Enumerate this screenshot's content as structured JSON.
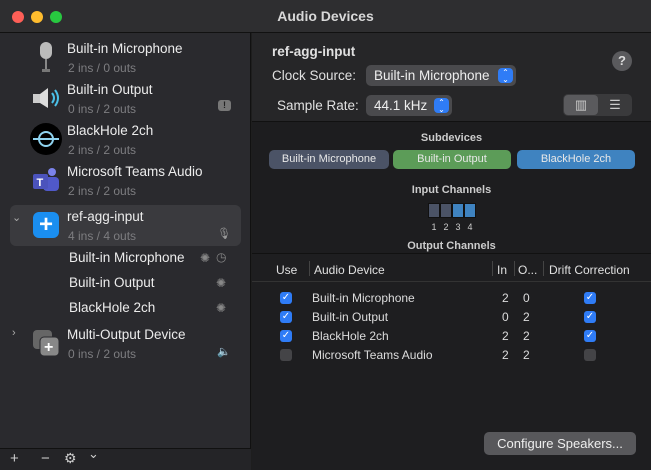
{
  "window": {
    "title": "Audio Devices"
  },
  "sidebar": {
    "devices": [
      {
        "name": "Built-in Microphone",
        "channels": "2 ins / 0 outs",
        "icon": "microphone-icon"
      },
      {
        "name": "Built-in Output",
        "channels": "0 ins / 2 outs",
        "icon": "speaker-icon",
        "status_icon": "alert-bubble-icon"
      },
      {
        "name": "BlackHole 2ch",
        "channels": "2 ins / 2 outs",
        "icon": "blackhole-icon"
      },
      {
        "name": "Microsoft Teams Audio",
        "channels": "2 ins / 2 outs",
        "icon": "teams-icon"
      },
      {
        "name": "ref-agg-input",
        "channels": "4 ins / 4 outs",
        "icon": "aggregate-device-icon",
        "selected": true,
        "expanded": true,
        "status_icon": "microphone-icon",
        "subdevices": [
          {
            "name": "Built-in Microphone"
          },
          {
            "name": "Built-in Output"
          },
          {
            "name": "BlackHole 2ch"
          }
        ]
      },
      {
        "name": "Multi-Output Device",
        "channels": "0 ins / 2 outs",
        "icon": "multi-output-icon",
        "expanded": false,
        "status_icon": "speaker-icon"
      }
    ],
    "toolbar": {
      "add": "+",
      "remove": "−",
      "gear": "⚙",
      "menu": "⌄"
    }
  },
  "detail": {
    "title": "ref-agg-input",
    "clock_source_label": "Clock Source:",
    "clock_source": "Built-in Microphone",
    "sample_rate_label": "Sample Rate:",
    "sample_rate": "44.1 kHz",
    "help": "?",
    "subdevices_title": "Subdevices",
    "subdevices": [
      {
        "name": "Built-in Microphone",
        "color": "#4b5366"
      },
      {
        "name": "Built-in Output",
        "color": "#5c9c58"
      },
      {
        "name": "BlackHole 2ch",
        "color": "#3f83c0"
      }
    ],
    "input_channels_title": "Input Channels",
    "input_channels": [
      {
        "n": "1",
        "color": "#4b5366"
      },
      {
        "n": "2",
        "color": "#4b5366"
      },
      {
        "n": "3",
        "color": "#3f83c0"
      },
      {
        "n": "4",
        "color": "#3f83c0"
      }
    ],
    "output_channels_title": "Output Channels"
  },
  "table": {
    "headers": {
      "use": "Use",
      "device": "Audio Device",
      "in": "In",
      "out": "O...",
      "drift": "Drift Correction"
    },
    "rows": [
      {
        "use": true,
        "device": "Built-in Microphone",
        "in": "2",
        "out": "0",
        "drift": true
      },
      {
        "use": true,
        "device": "Built-in Output",
        "in": "0",
        "out": "2",
        "drift": true
      },
      {
        "use": true,
        "device": "BlackHole 2ch",
        "in": "2",
        "out": "2",
        "drift": true
      },
      {
        "use": false,
        "device": "Microsoft Teams Audio",
        "in": "2",
        "out": "2",
        "drift": false
      }
    ],
    "configure_button": "Configure Speakers..."
  }
}
